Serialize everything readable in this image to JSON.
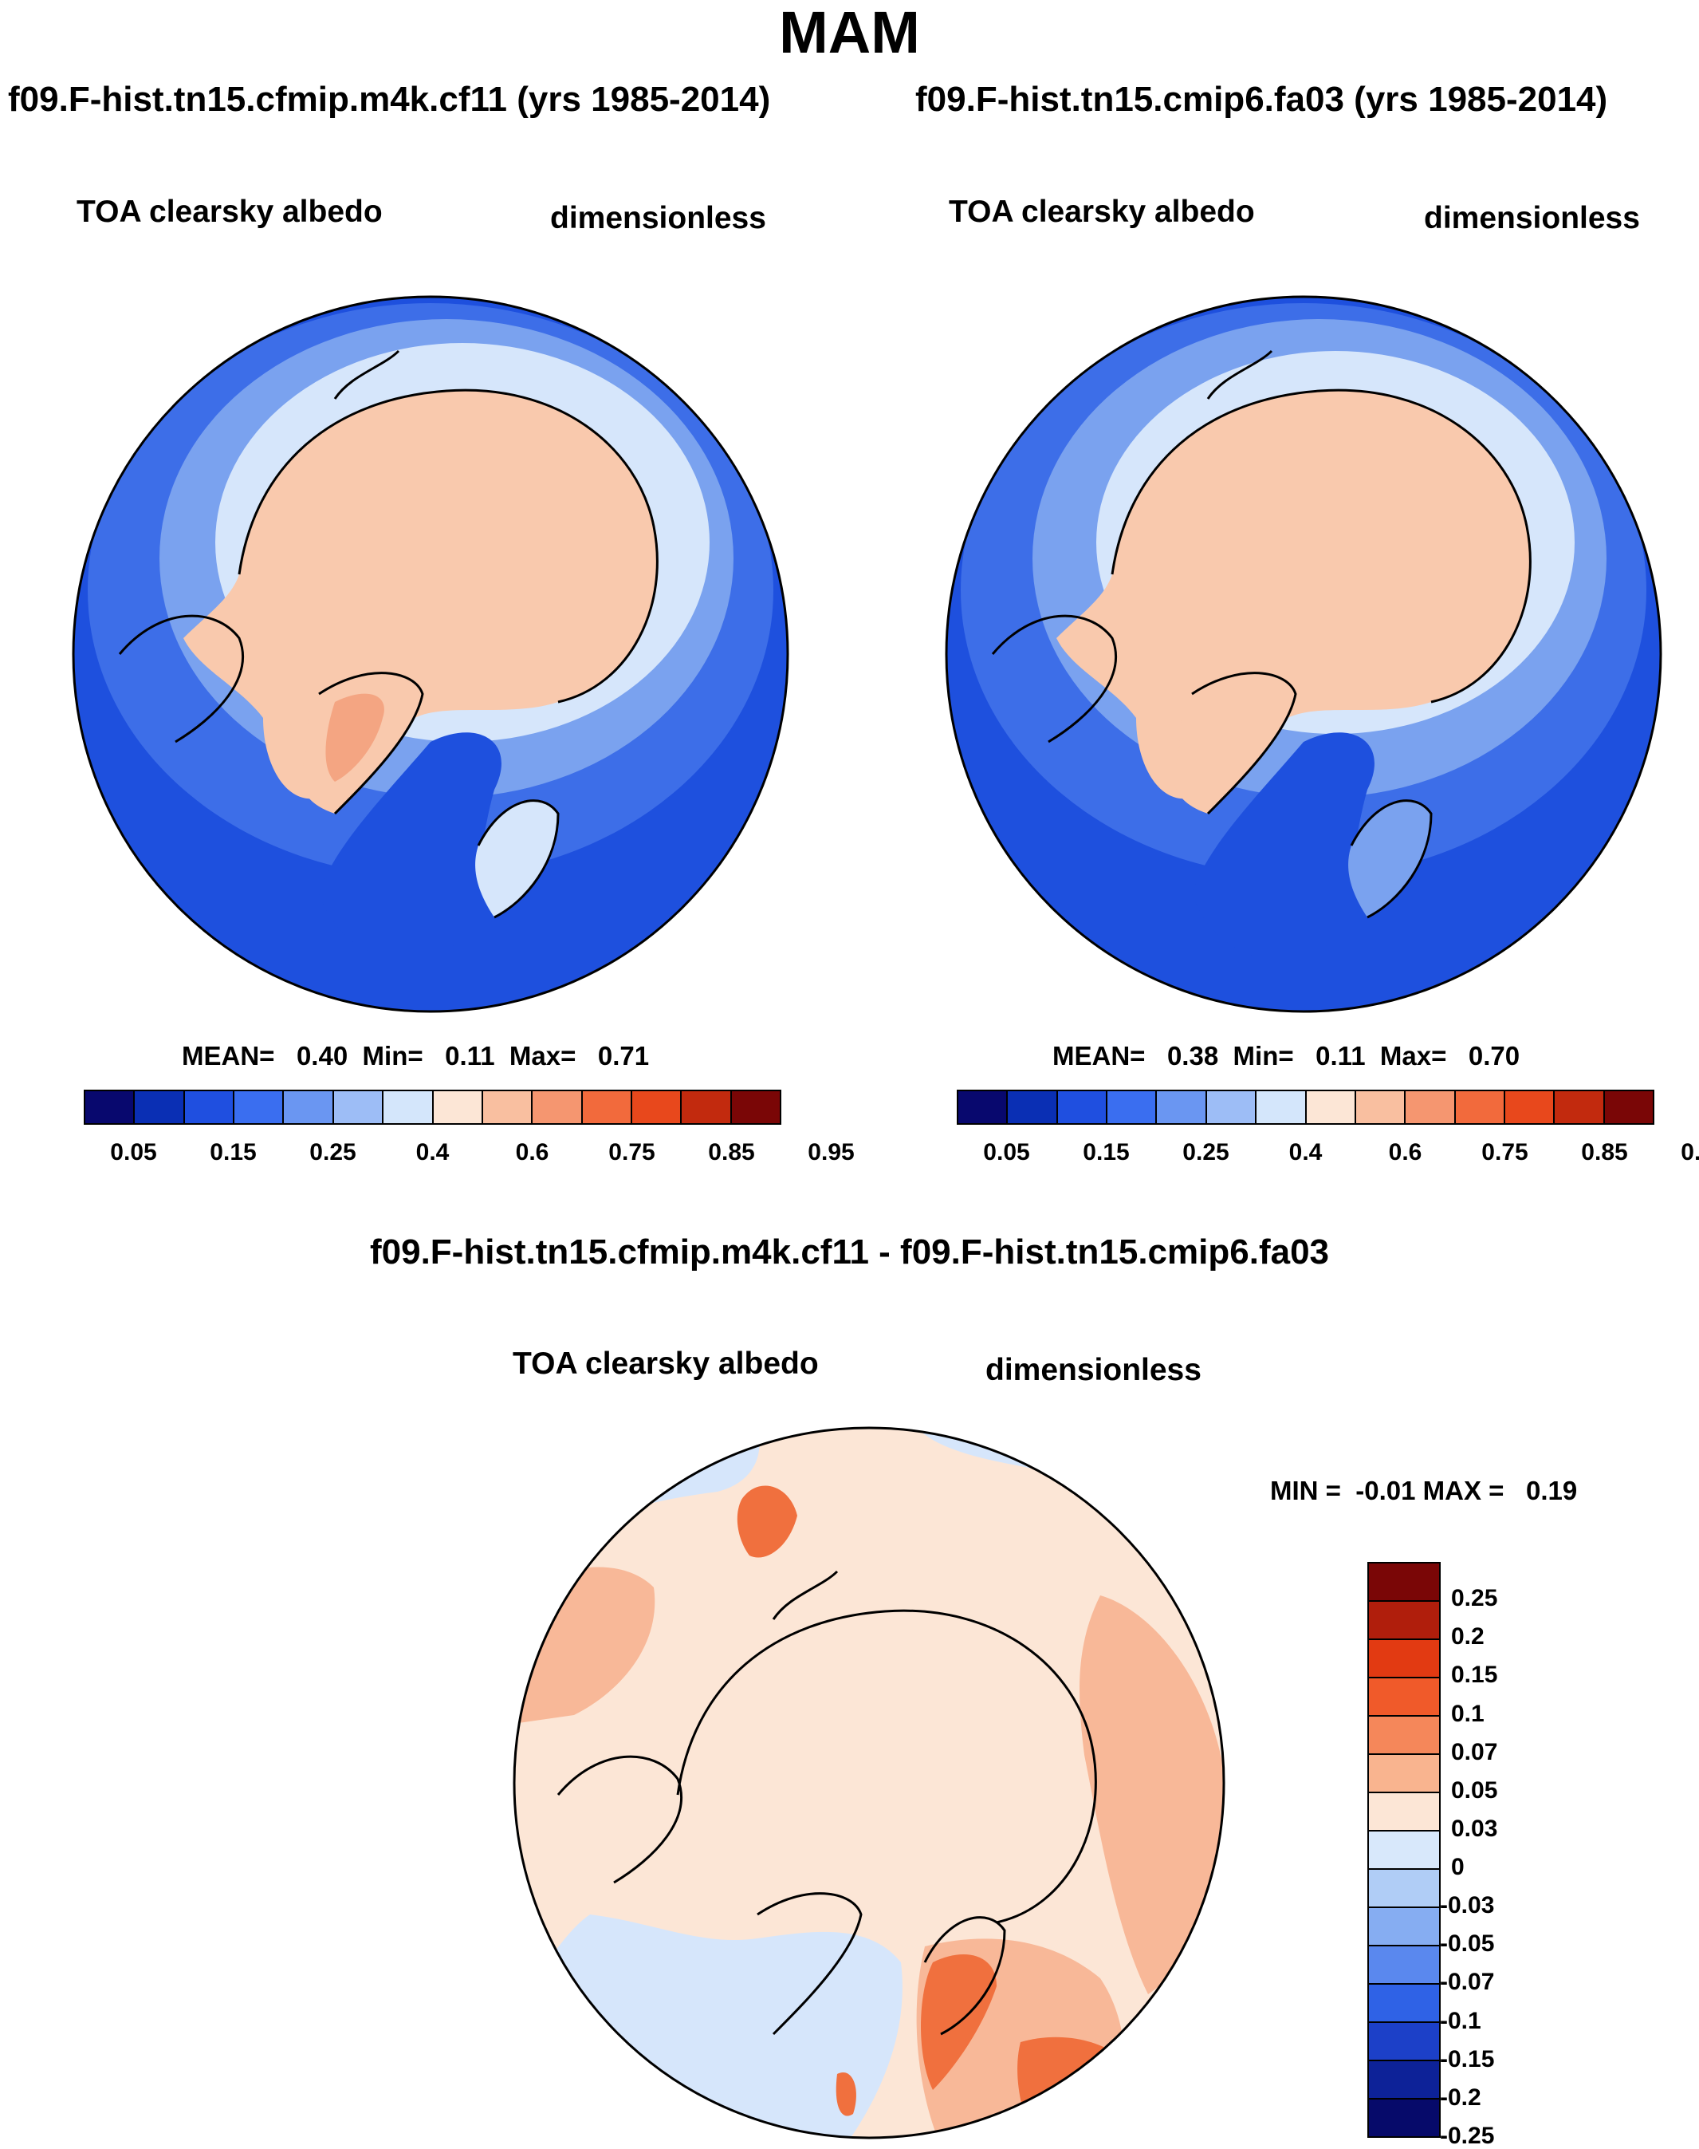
{
  "title": "MAM",
  "panels": [
    {
      "title": "f09.F-hist.tn15.cfmip.m4k.cf11 (yrs 1985-2014)",
      "variable": "TOA clearsky albedo",
      "units": "dimensionless",
      "stats": {
        "mean_label": "MEAN=",
        "mean": "0.40",
        "min_label": "Min=",
        "min": "0.11",
        "max_label": "Max=",
        "max": "0.71"
      }
    },
    {
      "title": "f09.F-hist.tn15.cmip6.fa03 (yrs 1985-2014)",
      "variable": "TOA clearsky albedo",
      "units": "dimensionless",
      "stats": {
        "mean_label": "MEAN=",
        "mean": "0.38",
        "min_label": "Min=",
        "min": "0.11",
        "max_label": "Max=",
        "max": "0.70"
      }
    },
    {
      "title": "f09.F-hist.tn15.cfmip.m4k.cf11 - f09.F-hist.tn15.cmip6.fa03",
      "variable": "TOA clearsky albedo",
      "units": "dimensionless",
      "minmax": {
        "min_label": "MIN =",
        "min": "-0.01",
        "max_label": "MAX =",
        "max": "0.19"
      }
    }
  ],
  "colorbar_abs": {
    "colors": [
      "#08086e",
      "#0a2fb4",
      "#1f4fe0",
      "#3a6ef0",
      "#6a96f2",
      "#9dbdf6",
      "#d4e6fb",
      "#fce6d6",
      "#f9bfa0",
      "#f59670",
      "#f26a3c",
      "#e8481c",
      "#c22a0e",
      "#7a0606"
    ],
    "ticks": [
      "0.05",
      "0.15",
      "0.25",
      "0.4",
      "0.6",
      "0.75",
      "0.85",
      "0.95"
    ]
  },
  "colorbar_diff": {
    "colors": [
      "#7a0606",
      "#b01e0c",
      "#e23a12",
      "#f05a2a",
      "#f5875a",
      "#f9b48f",
      "#fce6d6",
      "#d8e8fb",
      "#b0cdf6",
      "#86adf2",
      "#5a88ee",
      "#2f62e6",
      "#1c40c8",
      "#0d2298",
      "#060a6a"
    ],
    "ticks": [
      "0.25",
      "0.2",
      "0.15",
      "0.1",
      "0.07",
      "0.05",
      "0.03",
      "0",
      "-0.03",
      "-0.05",
      "-0.07",
      "-0.1",
      "-0.15",
      "-0.2",
      "-0.25"
    ]
  },
  "map_colors": {
    "ocean_low": "#1e50de",
    "ocean_mid": "#3d6ee8",
    "ocean_light": "#7aa2ef",
    "transition": "#a8c6f4",
    "pale": "#d6e6fb",
    "ice": "#f9c9ad",
    "ice_high": "#f4a582",
    "diff_base": "#fce6d6",
    "diff_warm": "#f8b898",
    "diff_hot": "#f0703e",
    "diff_cool": "#d6e6fb"
  }
}
